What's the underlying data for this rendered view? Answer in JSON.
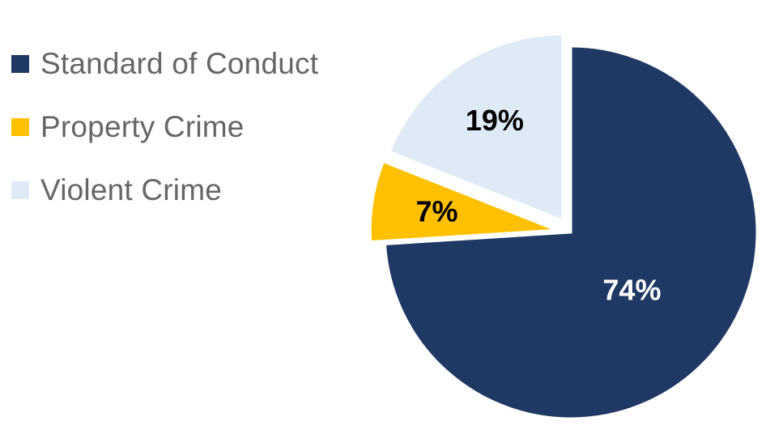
{
  "chart_data": {
    "type": "pie",
    "categories": [
      "Standard of Conduct",
      "Property Crime",
      "Violent Crime"
    ],
    "values": [
      74,
      7,
      19
    ],
    "labels": [
      "74%",
      "7%",
      "19%"
    ],
    "colors": [
      "#1F3864",
      "#FFC000",
      "#DEEAF6"
    ],
    "label_colors": [
      "#FFFFFF",
      "#000000",
      "#000000"
    ],
    "exploded": [
      false,
      true,
      true
    ],
    "legend_placement": "left",
    "start_angle_deg": 0,
    "direction": "clockwise"
  }
}
